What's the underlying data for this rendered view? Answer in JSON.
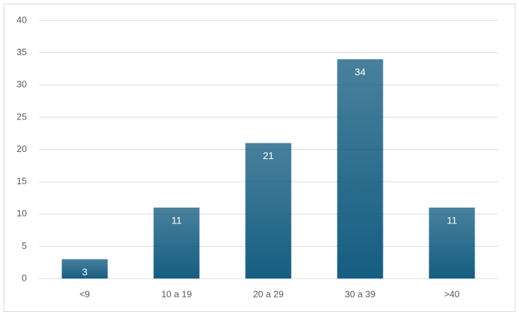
{
  "chart_data": {
    "type": "bar",
    "categories": [
      "<9",
      "10 a 19",
      "20 a 29",
      "30 a 39",
      ">40"
    ],
    "values": [
      3,
      11,
      21,
      34,
      11
    ],
    "color": "#155d81",
    "ylim": [
      0,
      40
    ],
    "yticks": [
      0,
      5,
      10,
      15,
      20,
      25,
      30,
      35,
      40
    ],
    "grid": true
  }
}
